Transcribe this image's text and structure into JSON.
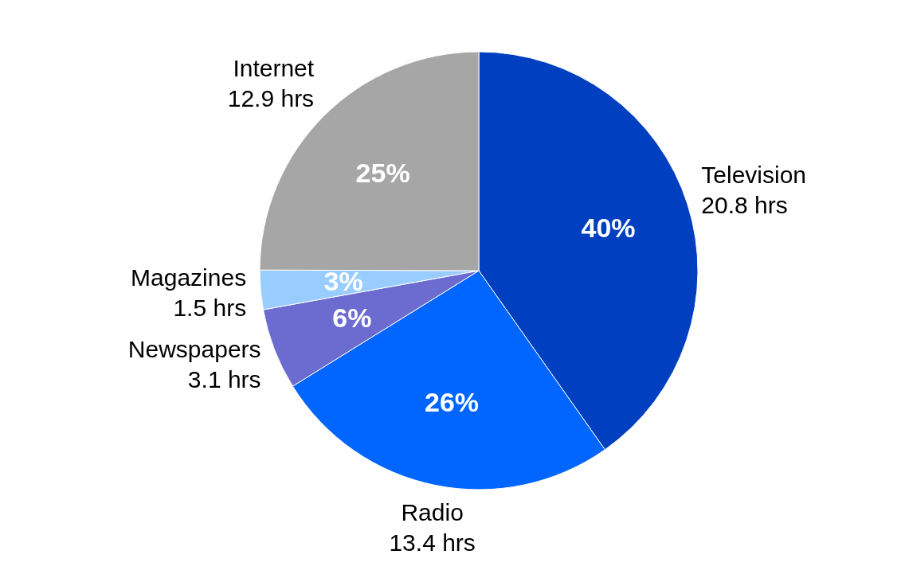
{
  "chart_data": {
    "type": "pie",
    "categories": [
      "Television",
      "Radio",
      "Newspapers",
      "Magazines",
      "Internet"
    ],
    "values": [
      20.8,
      13.4,
      3.1,
      1.5,
      12.9
    ],
    "colors": [
      "#0040c0",
      "#0066ff",
      "#6b6bd0",
      "#99ccff",
      "#a6a6a6"
    ],
    "value_labels": [
      "20.8 hrs",
      "13.4 hrs",
      "3.1 hrs",
      "1.5 hrs",
      "12.9 hrs"
    ],
    "annotations": [
      "40%",
      "26%",
      "6%",
      "3%",
      "25%"
    ]
  }
}
